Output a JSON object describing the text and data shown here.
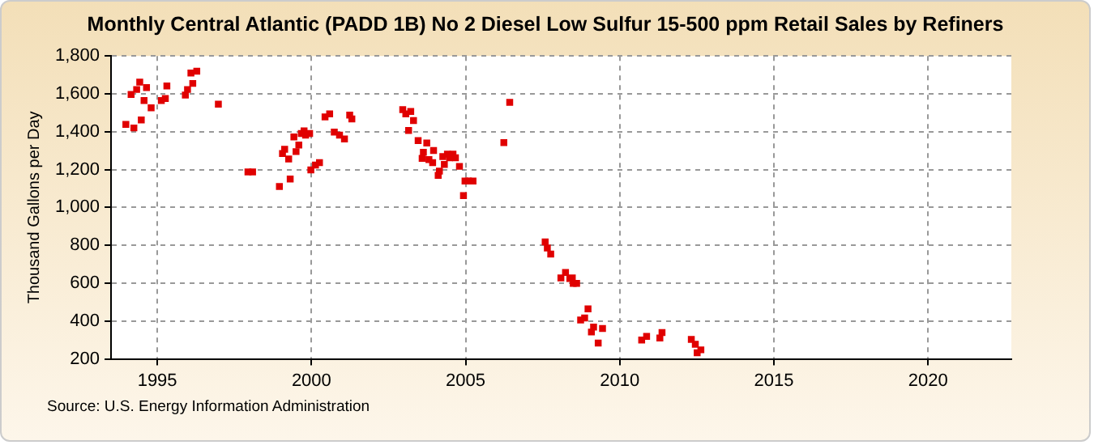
{
  "chart_data": {
    "type": "scatter",
    "title": "Monthly Central Atlantic (PADD 1B) No 2 Diesel Low Sulfur 15-500 ppm Retail Sales by Refiners",
    "ylabel": "Thousand Gallons per Day",
    "annotations": [
      "Source: U.S. Energy Information Administration"
    ],
    "xlim": [
      1993.5,
      2022.7
    ],
    "xticks": [
      1995,
      2000,
      2005,
      2010,
      2015,
      2020
    ],
    "ylim": [
      200,
      1800
    ],
    "yticks": [
      {
        "value": 200,
        "label": "200"
      },
      {
        "value": 400,
        "label": "400"
      },
      {
        "value": 600,
        "label": "600"
      },
      {
        "value": 800,
        "label": "800"
      },
      {
        "value": 1000,
        "label": "1,000"
      },
      {
        "value": 1200,
        "label": "1,200"
      },
      {
        "value": 1400,
        "label": "1,400"
      },
      {
        "value": 1600,
        "label": "1,600"
      },
      {
        "value": 1800,
        "label": "1,800"
      }
    ],
    "grid": true,
    "marker": "square",
    "legend": false,
    "series": [
      {
        "color": "#e00000",
        "x": [
          1993.98,
          1994.15,
          1994.24,
          1994.33,
          1994.43,
          1994.48,
          1994.57,
          1994.65,
          1994.8,
          1995.13,
          1995.26,
          1995.31,
          1995.91,
          1995.98,
          1996.09,
          1996.15,
          1996.28,
          1996.98,
          1997.94,
          1998.09,
          1998.96,
          1999.06,
          1999.13,
          1999.26,
          1999.31,
          1999.43,
          1999.5,
          1999.59,
          1999.67,
          1999.76,
          1999.81,
          1999.94,
          1999.98,
          2000.13,
          2000.26,
          2000.44,
          2000.59,
          2000.74,
          2000.91,
          2001.07,
          2001.24,
          2001.31,
          2002.96,
          2003.06,
          2003.22,
          2003.31,
          2003.15,
          2003.46,
          2003.74,
          2003.63,
          2003.59,
          2003.81,
          2003.93,
          2003.96,
          2004.11,
          2004.15,
          2004.26,
          2004.31,
          2004.41,
          2004.48,
          2004.59,
          2004.67,
          2004.8,
          2004.93,
          2004.98,
          2005.09,
          2005.24,
          2006.24,
          2006.43,
          2007.58,
          2007.65,
          2007.76,
          2008.09,
          2008.24,
          2008.38,
          2008.46,
          2008.49,
          2008.6,
          2008.73,
          2008.86,
          2008.97,
          2009.08,
          2009.15,
          2009.3,
          2009.44,
          2010.71,
          2010.87,
          2011.3,
          2011.37,
          2012.32,
          2012.45,
          2012.51,
          2012.63
        ],
        "values": [
          1439,
          1597,
          1420,
          1623,
          1662,
          1462,
          1565,
          1633,
          1526,
          1565,
          1575,
          1642,
          1594,
          1623,
          1710,
          1655,
          1720,
          1546,
          1188,
          1188,
          1111,
          1285,
          1307,
          1256,
          1150,
          1372,
          1295,
          1330,
          1391,
          1404,
          1382,
          1391,
          1198,
          1224,
          1237,
          1478,
          1494,
          1398,
          1382,
          1362,
          1488,
          1468,
          1517,
          1494,
          1507,
          1459,
          1407,
          1353,
          1340,
          1291,
          1259,
          1253,
          1237,
          1301,
          1169,
          1192,
          1269,
          1227,
          1282,
          1262,
          1282,
          1262,
          1217,
          1063,
          1140,
          1140,
          1140,
          1343,
          1555,
          818,
          786,
          754,
          628,
          657,
          625,
          628,
          599,
          599,
          406,
          416,
          464,
          342,
          368,
          284,
          361,
          300,
          319,
          310,
          339,
          303,
          277,
          232,
          248
        ]
      }
    ]
  }
}
